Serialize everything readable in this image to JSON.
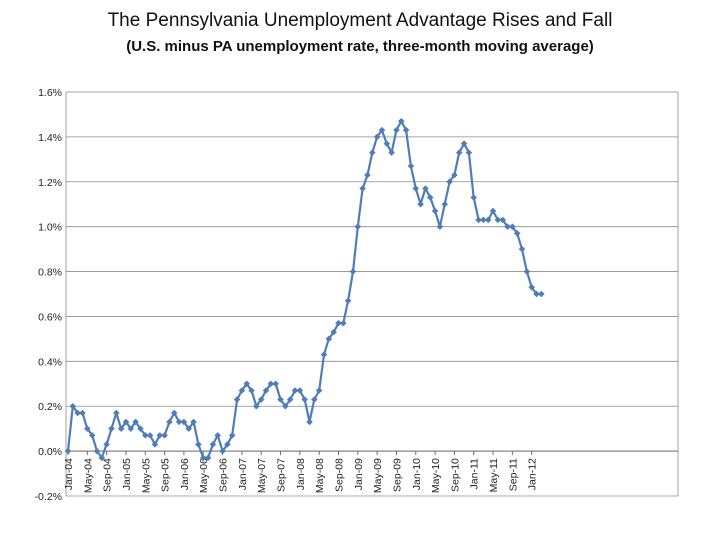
{
  "chart_data": {
    "type": "line",
    "title": "The Pennsylvania Unemployment Advantage Rises and Fall",
    "subtitle": "(U.S. minus PA unemployment rate, three-month moving average)",
    "xlabel": "",
    "ylabel": "",
    "ylim": [
      -0.2,
      1.6
    ],
    "y_ticks": [
      "-0.2%",
      "0.0%",
      "0.2%",
      "0.4%",
      "0.6%",
      "0.8%",
      "1.0%",
      "1.2%",
      "1.4%",
      "1.6%"
    ],
    "y_tick_values": [
      -0.2,
      0.0,
      0.2,
      0.4,
      0.6,
      0.8,
      1.0,
      1.2,
      1.4,
      1.6
    ],
    "x_tick_labels": [
      "Jan-04",
      "May-04",
      "Sep-04",
      "Jan-05",
      "May-05",
      "Sep-05",
      "Jan-06",
      "May-06",
      "Sep-06",
      "Jan-07",
      "May-07",
      "Sep-07",
      "Jan-08",
      "May-08",
      "Sep-08",
      "Jan-09",
      "May-09",
      "Sep-09",
      "Jan-10",
      "May-10",
      "Sep-10",
      "Jan-11",
      "May-11",
      "Sep-11",
      "Jan-12"
    ],
    "grid": true,
    "legend": "none",
    "series_color": "#4f7db6",
    "series": [
      {
        "values": [
          0.0,
          0.2,
          0.17,
          0.17,
          0.1,
          0.07,
          0.0,
          -0.03,
          0.03,
          0.1,
          0.17,
          0.1,
          0.13,
          0.1,
          0.13,
          0.1,
          0.07,
          0.07,
          0.03,
          0.07,
          0.07,
          0.13,
          0.17,
          0.13,
          0.13,
          0.1,
          0.13,
          0.03,
          -0.03,
          -0.03,
          0.03,
          0.07,
          0.0,
          0.03,
          0.07,
          0.23,
          0.27,
          0.3,
          0.27,
          0.2,
          0.23,
          0.27,
          0.3,
          0.3,
          0.23,
          0.2,
          0.23,
          0.27,
          0.27,
          0.23,
          0.13,
          0.23,
          0.27,
          0.43,
          0.5,
          0.53,
          0.57,
          0.57,
          0.67,
          0.8,
          1.0,
          1.17,
          1.23,
          1.33,
          1.4,
          1.43,
          1.37,
          1.33,
          1.43,
          1.47,
          1.43,
          1.27,
          1.17,
          1.1,
          1.17,
          1.13,
          1.07,
          1.0,
          1.1,
          1.2,
          1.23,
          1.33,
          1.37,
          1.33,
          1.13,
          1.03,
          1.03,
          1.03,
          1.07,
          1.03,
          1.03,
          1.0,
          1.0,
          0.97,
          0.9,
          0.8,
          0.73,
          0.7,
          0.7
        ]
      }
    ]
  }
}
